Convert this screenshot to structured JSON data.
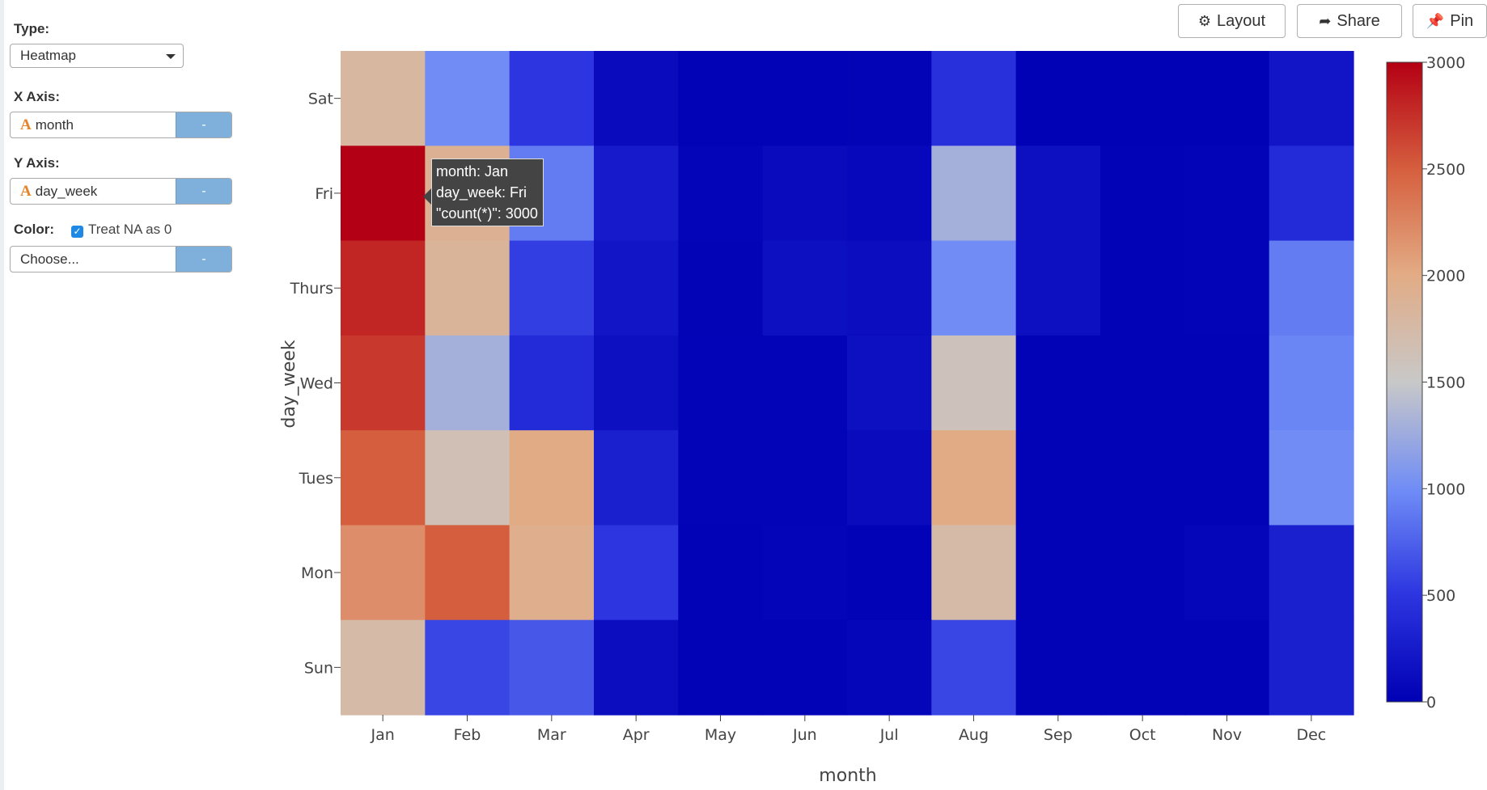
{
  "panel": {
    "type_label": "Type:",
    "type_value": "Heatmap",
    "x_label": "X Axis:",
    "x_value": "month",
    "y_label": "Y Axis:",
    "y_value": "day_week",
    "color_label": "Color:",
    "treat_na_label": "Treat NA as 0",
    "color_placeholder": "Choose...",
    "dash": "-",
    "field_type_glyph": "A"
  },
  "toolbar": {
    "layout_label": "Layout",
    "share_label": "Share",
    "pin_label": "Pin"
  },
  "tooltip": {
    "line1": "month: Jan",
    "line2": "day_week: Fri",
    "line3": "\"count(*)\": 3000"
  },
  "chart_data": {
    "type": "heatmap",
    "xlabel": "month",
    "ylabel": "day_week",
    "x": [
      "Jan",
      "Feb",
      "Mar",
      "Apr",
      "May",
      "Jun",
      "Jul",
      "Aug",
      "Sep",
      "Oct",
      "Nov",
      "Dec"
    ],
    "y": [
      "Sat",
      "Fri",
      "Thurs",
      "Wed",
      "Tues",
      "Mon",
      "Sun"
    ],
    "z": [
      [
        1800,
        1000,
        500,
        100,
        20,
        20,
        40,
        450,
        10,
        10,
        10,
        200
      ],
      [
        3000,
        1900,
        900,
        250,
        50,
        100,
        80,
        1300,
        150,
        20,
        30,
        400
      ],
      [
        2800,
        1850,
        550,
        200,
        40,
        150,
        120,
        1000,
        150,
        20,
        30,
        900
      ],
      [
        2700,
        1300,
        400,
        150,
        30,
        30,
        150,
        1600,
        20,
        20,
        20,
        950
      ],
      [
        2500,
        1650,
        2000,
        300,
        30,
        30,
        100,
        2000,
        20,
        20,
        20,
        1000
      ],
      [
        2200,
        2500,
        1950,
        500,
        20,
        50,
        20,
        1750,
        20,
        20,
        60,
        300
      ],
      [
        1750,
        600,
        700,
        120,
        20,
        20,
        60,
        600,
        20,
        20,
        20,
        300
      ]
    ],
    "colorscale_range": [
      0,
      3000
    ],
    "colorbar_ticks": [
      0,
      500,
      1000,
      1500,
      2000,
      2500,
      3000
    ],
    "colors": {
      "low": "#0000b4",
      "mid": "#c8c8c8",
      "high": "#b40014"
    }
  }
}
